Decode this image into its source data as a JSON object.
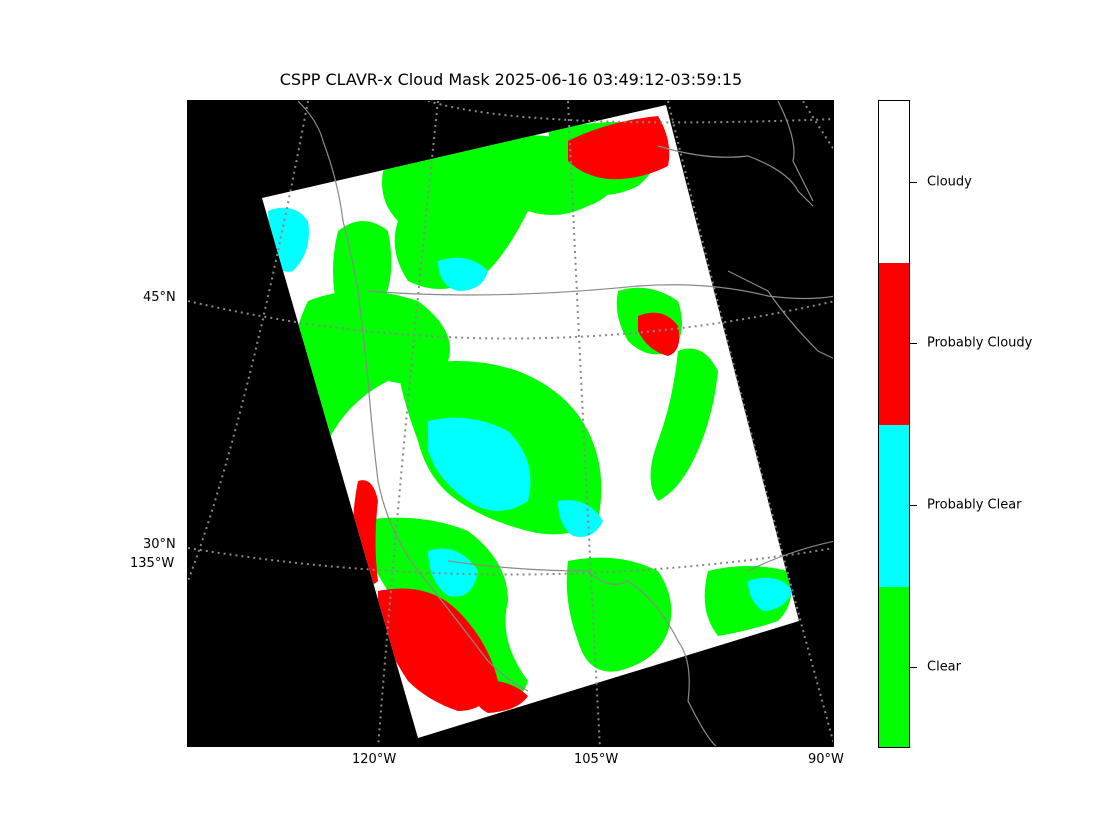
{
  "title": "CSPP CLAVR-x Cloud Mask 2025-06-16 03:49:12-03:59:15",
  "map": {
    "background": "#000000",
    "graticule_color": "#888888",
    "coastline_color": "#8a8a8a",
    "lat_labels": [
      "45°N",
      "30°N"
    ],
    "lon_labels": [
      "135°W",
      "120°W",
      "105°W",
      "90°W"
    ]
  },
  "colorbar": {
    "categories": [
      {
        "label": "Cloudy",
        "color": "#ffffff"
      },
      {
        "label": "Probably Cloudy",
        "color": "#ff0000"
      },
      {
        "label": "Probably Clear",
        "color": "#00ffff"
      },
      {
        "label": "Clear",
        "color": "#00ff00"
      }
    ]
  }
}
